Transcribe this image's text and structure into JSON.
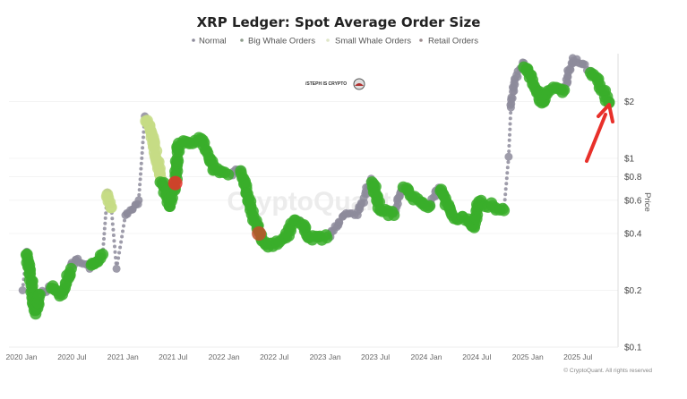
{
  "chart_data": {
    "type": "scatter",
    "title": "XRP Ledger: Spot Average Order Size",
    "ylabel": "Price",
    "xlabel": "",
    "y_scale": "log",
    "ylim": [
      0.1,
      4
    ],
    "xlim": [
      "2020-01",
      "2025-11"
    ],
    "grid": true,
    "legend_position": "top",
    "x_tick_labels": [
      "2020 Jan",
      "2020 Jul",
      "2021 Jan",
      "2021 Jul",
      "2022 Jan",
      "2022 Jul",
      "2023 Jan",
      "2023 Jul",
      "2024 Jan",
      "2024 Jul",
      "2025 Jan",
      "2025 Jul"
    ],
    "x_ticks": [
      "2020-01-01",
      "2020-07-01",
      "2021-01-01",
      "2021-07-01",
      "2022-01-01",
      "2022-07-01",
      "2023-01-01",
      "2023-07-01",
      "2024-01-01",
      "2024-07-01",
      "2025-01-01",
      "2025-07-01"
    ],
    "y_ticks": [
      {
        "value": 2,
        "label": "$2"
      },
      {
        "value": 1,
        "label": "$1"
      },
      {
        "value": 0.8,
        "label": "$0.8"
      },
      {
        "value": 0.6,
        "label": "$0.6"
      },
      {
        "value": 0.4,
        "label": "$0.4"
      },
      {
        "value": 0.2,
        "label": "$0.2"
      },
      {
        "value": 0.1,
        "label": "$0.1"
      }
    ],
    "series": [
      {
        "key": "normal",
        "name": "Normal",
        "color": "#8d8b9b"
      },
      {
        "key": "big",
        "name": "Big Whale Orders",
        "color": "#3aae2a"
      },
      {
        "key": "small",
        "name": "Small Whale Orders",
        "color": "#c5dc85"
      },
      {
        "key": "retail",
        "name": "Retail Orders",
        "color": "#e8302a"
      }
    ],
    "points": [
      {
        "date": "2020-01-05",
        "price": 0.2,
        "cat": "normal"
      },
      {
        "date": "2020-01-20",
        "price": 0.32,
        "cat": "normal"
      },
      {
        "date": "2020-02-21",
        "price": 0.15,
        "cat": "big"
      },
      {
        "date": "2020-03-07",
        "price": 0.19,
        "cat": "big"
      },
      {
        "date": "2020-04-09",
        "price": 0.21,
        "cat": "normal"
      },
      {
        "date": "2020-05-27",
        "price": 0.19,
        "cat": "big"
      },
      {
        "date": "2020-06-28",
        "price": 0.26,
        "cat": "big"
      },
      {
        "date": "2020-07-15",
        "price": 0.29,
        "cat": "normal"
      },
      {
        "date": "2020-09-03",
        "price": 0.26,
        "cat": "normal"
      },
      {
        "date": "2020-10-20",
        "price": 0.31,
        "cat": "big"
      },
      {
        "date": "2020-11-06",
        "price": 0.66,
        "cat": "normal"
      },
      {
        "date": "2020-11-20",
        "price": 0.55,
        "cat": "small"
      },
      {
        "date": "2020-12-09",
        "price": 0.26,
        "cat": "normal"
      },
      {
        "date": "2021-01-10",
        "price": 0.5,
        "cat": "normal"
      },
      {
        "date": "2021-02-27",
        "price": 0.6,
        "cat": "normal"
      },
      {
        "date": "2021-03-21",
        "price": 1.67,
        "cat": "normal"
      },
      {
        "date": "2021-04-15",
        "price": 1.35,
        "cat": "small"
      },
      {
        "date": "2021-05-18",
        "price": 0.78,
        "cat": "small"
      },
      {
        "date": "2021-06-18",
        "price": 0.56,
        "cat": "big"
      },
      {
        "date": "2021-07-09",
        "price": 0.74,
        "cat": "retail"
      },
      {
        "date": "2021-07-21",
        "price": 1.2,
        "cat": "big"
      },
      {
        "date": "2021-09-09",
        "price": 1.2,
        "cat": "big"
      },
      {
        "date": "2021-10-10",
        "price": 1.27,
        "cat": "big"
      },
      {
        "date": "2021-11-28",
        "price": 0.87,
        "cat": "big"
      },
      {
        "date": "2022-01-16",
        "price": 0.82,
        "cat": "big"
      },
      {
        "date": "2022-03-04",
        "price": 0.87,
        "cat": "normal"
      },
      {
        "date": "2022-04-06",
        "price": 0.56,
        "cat": "big"
      },
      {
        "date": "2022-05-07",
        "price": 0.4,
        "cat": "retail"
      },
      {
        "date": "2022-06-09",
        "price": 0.34,
        "cat": "big"
      },
      {
        "date": "2022-08-13",
        "price": 0.38,
        "cat": "big"
      },
      {
        "date": "2022-09-15",
        "price": 0.47,
        "cat": "big"
      },
      {
        "date": "2022-10-01",
        "price": 0.47,
        "cat": "normal"
      },
      {
        "date": "2022-11-03",
        "price": 0.38,
        "cat": "big"
      },
      {
        "date": "2023-01-07",
        "price": 0.38,
        "cat": "big"
      },
      {
        "date": "2023-03-10",
        "price": 0.5,
        "cat": "normal"
      },
      {
        "date": "2023-04-28",
        "price": 0.5,
        "cat": "normal"
      },
      {
        "date": "2023-06-16",
        "price": 0.78,
        "cat": "normal"
      },
      {
        "date": "2023-07-19",
        "price": 0.53,
        "cat": "big"
      },
      {
        "date": "2023-09-06",
        "price": 0.5,
        "cat": "big"
      },
      {
        "date": "2023-10-07",
        "price": 0.7,
        "cat": "normal"
      },
      {
        "date": "2023-11-09",
        "price": 0.63,
        "cat": "big"
      },
      {
        "date": "2024-01-13",
        "price": 0.56,
        "cat": "big"
      },
      {
        "date": "2024-02-15",
        "price": 0.7,
        "cat": "normal"
      },
      {
        "date": "2024-04-03",
        "price": 0.5,
        "cat": "big"
      },
      {
        "date": "2024-05-22",
        "price": 0.47,
        "cat": "big"
      },
      {
        "date": "2024-06-22",
        "price": 0.43,
        "cat": "big"
      },
      {
        "date": "2024-07-09",
        "price": 0.59,
        "cat": "big"
      },
      {
        "date": "2024-08-27",
        "price": 0.56,
        "cat": "big"
      },
      {
        "date": "2024-10-07",
        "price": 0.53,
        "cat": "big"
      },
      {
        "date": "2024-10-24",
        "price": 1.02,
        "cat": "normal"
      },
      {
        "date": "2024-11-01",
        "price": 1.86,
        "cat": "normal"
      },
      {
        "date": "2024-11-15",
        "price": 2.6,
        "cat": "normal"
      },
      {
        "date": "2024-12-18",
        "price": 3.2,
        "cat": "normal"
      },
      {
        "date": "2025-01-18",
        "price": 2.6,
        "cat": "big"
      },
      {
        "date": "2025-02-21",
        "price": 1.97,
        "cat": "big"
      },
      {
        "date": "2025-03-24",
        "price": 2.3,
        "cat": "big"
      },
      {
        "date": "2025-05-12",
        "price": 2.3,
        "cat": "big"
      },
      {
        "date": "2025-06-12",
        "price": 3.4,
        "cat": "normal"
      },
      {
        "date": "2025-08-15",
        "price": 2.9,
        "cat": "normal"
      },
      {
        "date": "2025-09-18",
        "price": 2.45,
        "cat": "big"
      },
      {
        "date": "2025-10-21",
        "price": 1.97,
        "cat": "big"
      }
    ],
    "watermark": "CryptoQuant",
    "credit": "© CryptoQuant. All rights reserved",
    "logo_text": "/STEPH IS CRYPTO",
    "annotation_arrow_color": "#e8302a"
  }
}
